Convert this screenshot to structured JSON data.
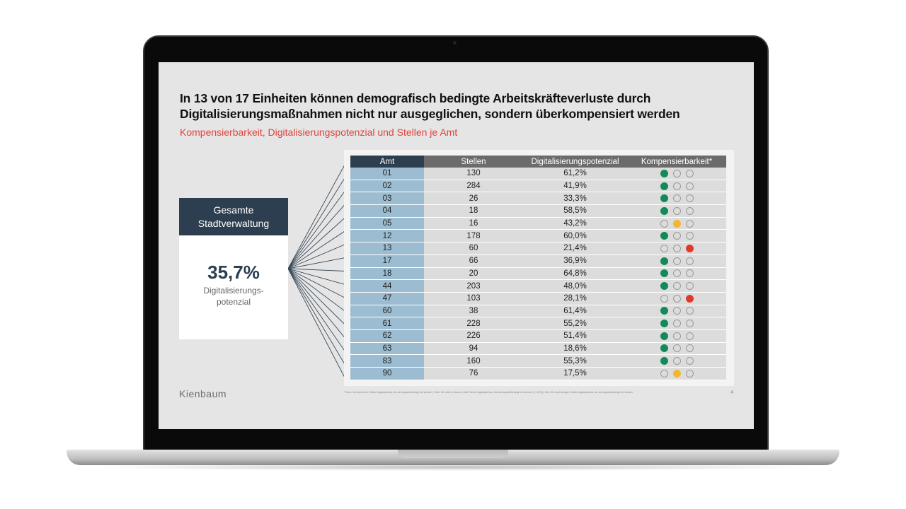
{
  "slide": {
    "title_line1": "In 13 von 17 Einheiten können demografisch bedingte Arbeitskräfteverluste durch",
    "title_line2": "Digitalisierungsmaßnahmen nicht nur ausgeglichen, sondern überkompensiert werden",
    "subtitle": "Kompensierbarkeit, Digitalisierungspotenzial und Stellen je Amt",
    "total": {
      "head_line1": "Gesamte",
      "head_line2": "Stadtverwaltung",
      "value": "35,7%",
      "label_line1": "Digitalisierungs-",
      "label_line2": "potenzial"
    },
    "brand": "Kienbaum",
    "page_number": "4",
    "footnote": "¹ Grün: Wo sind mehr Stellen digitalisierbar, als demografiebedingt frei werden | Gelb: Wo sind in etwa so viele Stellen digitalisierbar, wie demografiebedingt frei werden (+/-10%) | Rot: Wo sind weniger Stellen digitalisierbar, als demografiebedingt frei werden"
  },
  "table": {
    "headers": [
      "Amt",
      "Stellen",
      "Digitalisierungspotenzial",
      "Kompensierbarkeit*"
    ],
    "colors": {
      "green": "#138a5a",
      "amber": "#f2b632",
      "red": "#e0382b"
    },
    "rows": [
      {
        "amt": "01",
        "stellen": "130",
        "potenzial": "61,2%",
        "status": "green"
      },
      {
        "amt": "02",
        "stellen": "284",
        "potenzial": "41,9%",
        "status": "green"
      },
      {
        "amt": "03",
        "stellen": "26",
        "potenzial": "33,3%",
        "status": "green"
      },
      {
        "amt": "04",
        "stellen": "18",
        "potenzial": "58,5%",
        "status": "green"
      },
      {
        "amt": "05",
        "stellen": "16",
        "potenzial": "43,2%",
        "status": "amber"
      },
      {
        "amt": "12",
        "stellen": "178",
        "potenzial": "60,0%",
        "status": "green"
      },
      {
        "amt": "13",
        "stellen": "60",
        "potenzial": "21,4%",
        "status": "red"
      },
      {
        "amt": "17",
        "stellen": "66",
        "potenzial": "36,9%",
        "status": "green"
      },
      {
        "amt": "18",
        "stellen": "20",
        "potenzial": "64,8%",
        "status": "green"
      },
      {
        "amt": "44",
        "stellen": "203",
        "potenzial": "48,0%",
        "status": "green"
      },
      {
        "amt": "47",
        "stellen": "103",
        "potenzial": "28,1%",
        "status": "red"
      },
      {
        "amt": "60",
        "stellen": "38",
        "potenzial": "61,4%",
        "status": "green"
      },
      {
        "amt": "61",
        "stellen": "228",
        "potenzial": "55,2%",
        "status": "green"
      },
      {
        "amt": "62",
        "stellen": "226",
        "potenzial": "51,4%",
        "status": "green"
      },
      {
        "amt": "63",
        "stellen": "94",
        "potenzial": "18,6%",
        "status": "green"
      },
      {
        "amt": "83",
        "stellen": "160",
        "potenzial": "55,3%",
        "status": "green"
      },
      {
        "amt": "90",
        "stellen": "76",
        "potenzial": "17,5%",
        "status": "amber"
      }
    ]
  }
}
